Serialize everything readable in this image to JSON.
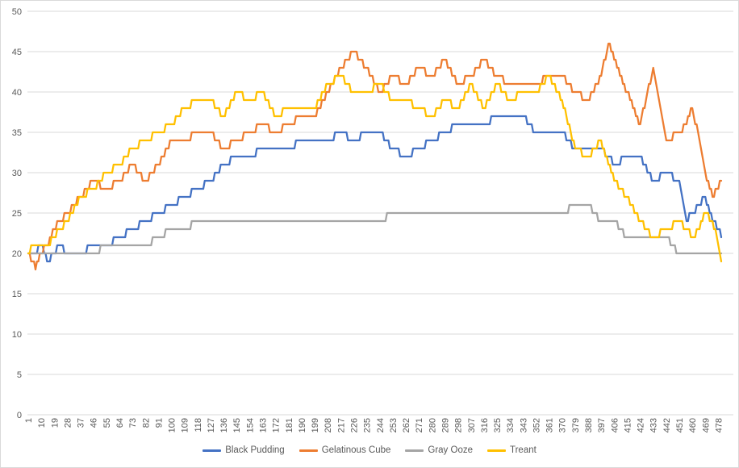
{
  "chart_data": {
    "type": "line",
    "title": "",
    "xlabel": "",
    "ylabel": "",
    "grid": true,
    "legend_position": "bottom",
    "y_axis": {
      "min": 0,
      "max": 50,
      "step": 5
    },
    "y_tick_labels": [
      "0",
      "5",
      "10",
      "15",
      "20",
      "25",
      "30",
      "35",
      "40",
      "45",
      "50"
    ],
    "x_axis": {
      "first_category": 1,
      "last_category": 480,
      "tick_step": 9
    },
    "x_tick_labels": [
      "1",
      "10",
      "19",
      "28",
      "37",
      "46",
      "55",
      "64",
      "73",
      "82",
      "91",
      "100",
      "109",
      "118",
      "127",
      "136",
      "145",
      "154",
      "163",
      "172",
      "181",
      "190",
      "199",
      "208",
      "217",
      "226",
      "235",
      "244",
      "253",
      "262",
      "271",
      "280",
      "289",
      "298",
      "307",
      "316",
      "325",
      "334",
      "343",
      "352",
      "361",
      "370",
      "379",
      "388",
      "397",
      "406",
      "415",
      "424",
      "433",
      "442",
      "451",
      "460",
      "469",
      "478"
    ],
    "sample_x": [
      1,
      4,
      6,
      10,
      14,
      19,
      23,
      28,
      37,
      46,
      55,
      64,
      73,
      82,
      91,
      100,
      109,
      118,
      127,
      136,
      145,
      154,
      163,
      172,
      181,
      190,
      199,
      208,
      217,
      226,
      235,
      244,
      253,
      262,
      271,
      280,
      289,
      298,
      307,
      316,
      325,
      334,
      343,
      352,
      361,
      370,
      379,
      388,
      397,
      402,
      406,
      415,
      424,
      433,
      442,
      451,
      456,
      460,
      465,
      469,
      474,
      478,
      480
    ],
    "series": [
      {
        "name": "Black Pudding",
        "color": "#4472C4",
        "values": [
          20,
          20,
          20,
          21,
          19,
          20,
          21,
          20,
          20,
          21,
          21,
          22,
          23,
          24,
          25,
          26,
          27,
          28,
          29,
          31,
          32,
          32,
          33,
          33,
          33,
          34,
          34,
          34,
          35,
          34,
          35,
          35,
          33,
          32,
          33,
          34,
          35,
          36,
          36,
          36,
          37,
          37,
          37,
          35,
          35,
          35,
          33,
          33,
          33,
          32,
          31,
          32,
          32,
          29,
          30,
          29,
          24,
          25,
          26,
          27,
          24,
          23,
          22
        ]
      },
      {
        "name": "Gelatinous Cube",
        "color": "#ED7D31",
        "values": [
          20,
          19,
          18,
          20,
          21,
          23,
          24,
          25,
          27,
          29,
          28,
          29,
          31,
          29,
          31,
          34,
          34,
          35,
          35,
          33,
          34,
          35,
          36,
          35,
          36,
          37,
          37,
          40,
          43,
          45,
          43,
          40,
          42,
          41,
          43,
          42,
          44,
          41,
          42,
          44,
          42,
          41,
          41,
          41,
          42,
          42,
          40,
          39,
          42,
          46,
          44,
          40,
          36,
          43,
          34,
          35,
          36,
          38,
          34,
          30,
          27,
          28,
          29
        ]
      },
      {
        "name": "Gray Ooze",
        "color": "#A5A5A5",
        "values": [
          20,
          20,
          20,
          20,
          20,
          20,
          20,
          20,
          20,
          20,
          21,
          21,
          21,
          21,
          22,
          23,
          23,
          24,
          24,
          24,
          24,
          24,
          24,
          24,
          24,
          24,
          24,
          24,
          24,
          24,
          24,
          24,
          25,
          25,
          25,
          25,
          25,
          25,
          25,
          25,
          25,
          25,
          25,
          25,
          25,
          25,
          26,
          26,
          24,
          24,
          24,
          22,
          22,
          22,
          22,
          20,
          20,
          20,
          20,
          20,
          20,
          20,
          20
        ]
      },
      {
        "name": "Treant",
        "color": "#FFC000",
        "values": [
          20,
          21,
          21,
          21,
          21,
          22,
          23,
          24,
          27,
          28,
          30,
          31,
          33,
          34,
          35,
          36,
          38,
          39,
          39,
          37,
          40,
          39,
          40,
          37,
          38,
          38,
          38,
          41,
          42,
          40,
          40,
          41,
          39,
          39,
          38,
          37,
          39,
          38,
          41,
          38,
          41,
          39,
          40,
          40,
          42,
          39,
          33,
          32,
          34,
          31,
          29,
          27,
          24,
          22,
          23,
          24,
          23,
          22,
          23,
          25,
          24,
          21,
          19
        ]
      }
    ]
  },
  "styles": {
    "gridline_color": "#d9d9d9",
    "axis_label_color": "#595959",
    "background": "#ffffff"
  }
}
